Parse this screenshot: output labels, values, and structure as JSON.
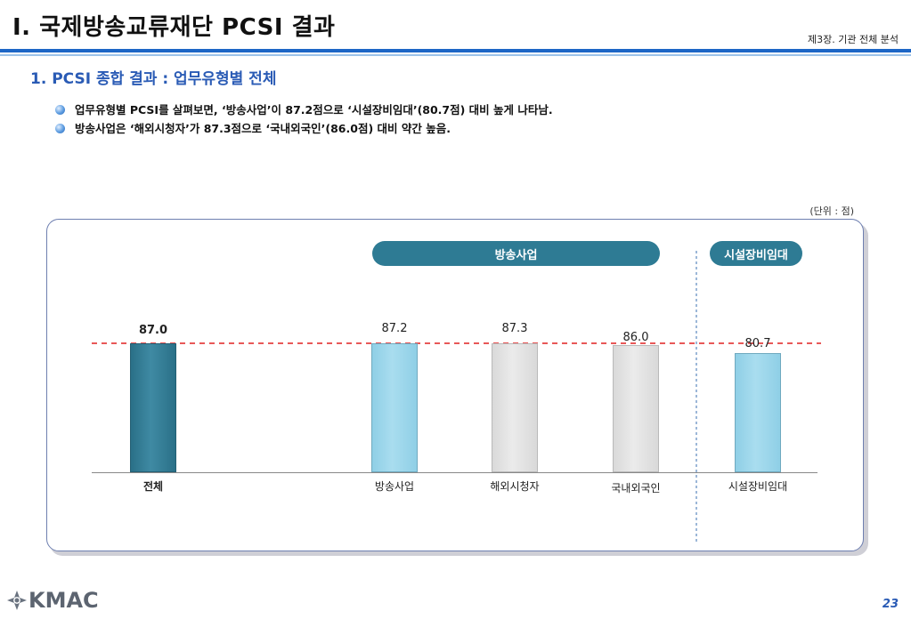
{
  "header": {
    "title": "I. 국제방송교류재단 PCSI 결과",
    "chapter": "제3장. 기관 전체 분석"
  },
  "section": {
    "subtitle": "1. PCSI 종합 결과 : 업무유형별 전체",
    "bullets": [
      "업무유형별 PCSI를 살펴보면, ‘방송사업’이 87.2점으로 ‘시설장비임대’(80.7점) 대비 높게 나타남.",
      "방송사업은 ‘해외시청자’가 87.3점으로 ‘국내외국인’(86.0점) 대비 약간 높음."
    ]
  },
  "unit_label": "(단위 : 점)",
  "group_labels": {
    "broadcast": "방송사업",
    "facility": "시설장비임대"
  },
  "chart_data": {
    "type": "bar",
    "categories": [
      "전체",
      "방송사업",
      "해외시청자",
      "국내외국인",
      "시설장비임대"
    ],
    "values": [
      87.0,
      87.2,
      87.3,
      86.0,
      80.7
    ],
    "value_labels": [
      "87.0",
      "87.2",
      "87.3",
      "86.0",
      "80.7"
    ],
    "reference_line": 87.0,
    "colors": {
      "total": "#2e7b94",
      "group": "#a9ddef",
      "sub": "#e6e6e6",
      "reference": "#e02020"
    },
    "grid": false,
    "legend": "none"
  },
  "footer": {
    "logo_text": "KMAC",
    "page_number": "23"
  }
}
